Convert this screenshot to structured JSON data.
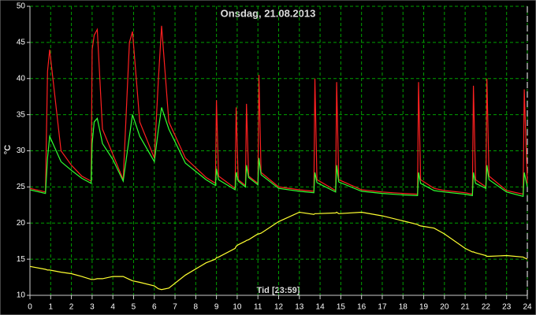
{
  "chart_data": {
    "type": "line",
    "title": "Onsdag, 21.08.2013",
    "x_label": "Tid [23:59]",
    "y_label": "°C",
    "x": [
      0,
      0.75,
      0.85,
      0.95,
      1.5,
      2,
      2.5,
      2.95,
      3.0,
      3.1,
      3.25,
      3.5,
      4,
      4.5,
      4.8,
      4.95,
      5.3,
      6,
      6.2,
      6.35,
      6.7,
      7.5,
      8.5,
      8.95,
      9.0,
      9.1,
      9.9,
      9.95,
      10.05,
      10.4,
      10.45,
      10.55,
      11.0,
      11.05,
      11.15,
      12,
      13,
      13.7,
      13.75,
      13.85,
      14.75,
      14.8,
      14.9,
      16,
      17,
      18,
      18.7,
      18.75,
      18.85,
      19.5,
      20,
      21,
      21.35,
      21.4,
      21.5,
      22.0,
      22.05,
      22.15,
      23,
      23.8,
      23.85,
      24
    ],
    "series": [
      {
        "color": "#ff2020",
        "values": [
          24.8,
          24.3,
          41,
          44,
          30,
          28,
          26.5,
          25.8,
          44,
          46,
          46.8,
          33,
          29.5,
          26,
          45,
          46.5,
          34,
          29,
          40,
          47.3,
          34,
          29,
          26.3,
          25.5,
          37,
          26.5,
          24.8,
          36,
          26,
          25.2,
          36.5,
          26.5,
          25.5,
          40.5,
          27,
          25,
          24.6,
          24.4,
          40,
          26,
          24.5,
          39.5,
          26,
          24.6,
          24.3,
          24.1,
          24,
          39.5,
          26,
          24.8,
          24.5,
          24.2,
          24,
          39,
          26,
          25,
          40,
          26.5,
          24.5,
          24,
          38.5,
          25.5
        ]
      },
      {
        "color": "#30ff30",
        "values": [
          24.6,
          24.1,
          29,
          32,
          28.5,
          27.3,
          26.2,
          25.5,
          31,
          34,
          34.5,
          31,
          28.8,
          25.8,
          32,
          35,
          32,
          28.5,
          33,
          36,
          33,
          28.3,
          26,
          25.2,
          27.5,
          26,
          24.6,
          27,
          25.8,
          25,
          28,
          26.3,
          25.3,
          29,
          26.7,
          24.8,
          24.4,
          24.2,
          27,
          25.6,
          24.3,
          28,
          25.7,
          24.4,
          24.1,
          23.9,
          23.8,
          27,
          25.5,
          24.5,
          24.3,
          24,
          23.8,
          27,
          25.5,
          24.8,
          28,
          26,
          24.3,
          23.7,
          27,
          25
        ]
      },
      {
        "color": "#ffff30",
        "values": [
          14.0,
          13.6,
          13.5,
          13.5,
          13.2,
          13.0,
          12.6,
          12.2,
          12.2,
          12.2,
          12.3,
          12.3,
          12.6,
          12.6,
          12.2,
          12.0,
          11.8,
          11.3,
          10.9,
          10.8,
          11.0,
          12.8,
          14.5,
          15.0,
          15.2,
          15.3,
          16.5,
          16.8,
          17.0,
          17.5,
          17.6,
          17.7,
          18.5,
          18.5,
          18.6,
          20.2,
          21.5,
          21.2,
          21.3,
          21.3,
          21.4,
          21.5,
          21.3,
          21.5,
          21.0,
          20.3,
          19.8,
          19.7,
          19.6,
          19.3,
          18.5,
          16.5,
          16,
          16,
          15.9,
          15.5,
          15.4,
          15.4,
          15.5,
          15.3,
          15.2,
          15.0
        ]
      }
    ],
    "xlim": [
      0,
      24
    ],
    "xticks": [
      0,
      1,
      2,
      3,
      4,
      5,
      6,
      7,
      8,
      9,
      10,
      11,
      12,
      13,
      14,
      15,
      16,
      17,
      18,
      19,
      20,
      21,
      22,
      23,
      24
    ],
    "ylim": [
      10,
      50
    ],
    "yticks": [
      10,
      15,
      20,
      25,
      30,
      35,
      40,
      45,
      50
    ],
    "grid": true
  }
}
